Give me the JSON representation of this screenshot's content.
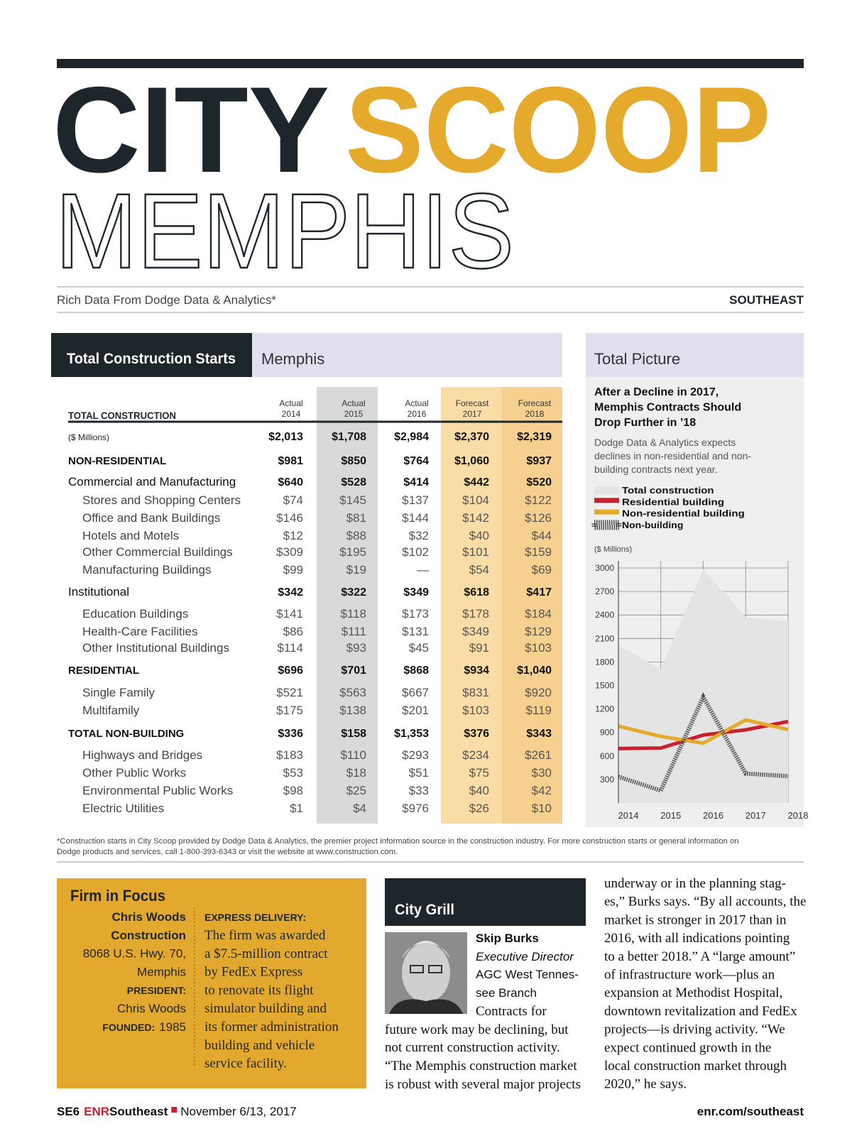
{
  "header": {
    "title_1": "CITY",
    "title_2": "SCOOP",
    "city": "MEMPHIS",
    "tagline": "Rich Data From Dodge Data & Analytics*",
    "region": "SOUTHEAST"
  },
  "table": {
    "title": "Total Construction Starts",
    "city": "Memphis",
    "heading": "TOTAL CONSTRUCTION",
    "columns": [
      {
        "status": "Actual",
        "year": "2014"
      },
      {
        "status": "Actual",
        "year": "2015"
      },
      {
        "status": "Actual",
        "year": "2016"
      },
      {
        "status": "Forecast",
        "year": "2017"
      },
      {
        "status": "Forecast",
        "year": "2018"
      }
    ],
    "rows": [
      {
        "label": "($ Millions)",
        "style": "total",
        "values": [
          "$2,013",
          "$1,708",
          "$2,984",
          "$2,370",
          "$2,319"
        ]
      },
      {
        "label": "NON-RESIDENTIAL",
        "style": "section",
        "values": [
          "$981",
          "$850",
          "$764",
          "$1,060",
          "$937"
        ]
      },
      {
        "label": "Commercial and Manufacturing",
        "style": "group",
        "values": [
          "$640",
          "$528",
          "$414",
          "$442",
          "$520"
        ]
      },
      {
        "label": "Stores and Shopping Centers",
        "style": "item",
        "values": [
          "$74",
          "$145",
          "$137",
          "$104",
          "$122"
        ]
      },
      {
        "label": "Office and Bank Buildings",
        "style": "item",
        "values": [
          "$146",
          "$81",
          "$144",
          "$142",
          "$126"
        ]
      },
      {
        "label": "Hotels and Motels",
        "style": "item",
        "values": [
          "$12",
          "$88",
          "$32",
          "$40",
          "$44"
        ]
      },
      {
        "label": "Other Commercial Buildings",
        "style": "item",
        "values": [
          "$309",
          "$195",
          "$102",
          "$101",
          "$159"
        ]
      },
      {
        "label": "Manufacturing Buildings",
        "style": "item",
        "values": [
          "$99",
          "$19",
          "—",
          "$54",
          "$69"
        ]
      },
      {
        "label": "Institutional",
        "style": "group",
        "values": [
          "$342",
          "$322",
          "$349",
          "$618",
          "$417"
        ]
      },
      {
        "label": "Education Buildings",
        "style": "item",
        "values": [
          "$141",
          "$118",
          "$173",
          "$178",
          "$184"
        ]
      },
      {
        "label": "Health-Care Facilities",
        "style": "item",
        "values": [
          "$86",
          "$111",
          "$131",
          "$349",
          "$129"
        ]
      },
      {
        "label": "Other Institutional Buildings",
        "style": "item",
        "values": [
          "$114",
          "$93",
          "$45",
          "$91",
          "$103"
        ]
      },
      {
        "label": "RESIDENTIAL",
        "style": "section",
        "values": [
          "$696",
          "$701",
          "$868",
          "$934",
          "$1,040"
        ]
      },
      {
        "label": "Single Family",
        "style": "item",
        "values": [
          "$521",
          "$563",
          "$667",
          "$831",
          "$920"
        ]
      },
      {
        "label": "Multifamily",
        "style": "item",
        "values": [
          "$175",
          "$138",
          "$201",
          "$103",
          "$119"
        ]
      },
      {
        "label": "TOTAL NON-BUILDING",
        "style": "section",
        "values": [
          "$336",
          "$158",
          "$1,353",
          "$376",
          "$343"
        ]
      },
      {
        "label": "Highways and Bridges",
        "style": "item",
        "values": [
          "$183",
          "$110",
          "$293",
          "$234",
          "$261"
        ]
      },
      {
        "label": "Other Public Works",
        "style": "item",
        "values": [
          "$53",
          "$18",
          "$51",
          "$75",
          "$30"
        ]
      },
      {
        "label": "Environmental Public Works",
        "style": "item",
        "values": [
          "$98",
          "$25",
          "$33",
          "$40",
          "$42"
        ]
      },
      {
        "label": "Electric Utilities",
        "style": "item",
        "values": [
          "$1",
          "$4",
          "$976",
          "$26",
          "$10"
        ]
      }
    ]
  },
  "panel": {
    "title": "Total Picture",
    "headline": [
      "After a Decline in 2017,",
      "Memphis Contracts Should",
      "Drop Further in ’18"
    ],
    "description": [
      "Dodge Data & Analytics expects",
      "declines in non-residential and non-",
      "building contracts next year."
    ],
    "units": "($ Millions)"
  },
  "chart_data": {
    "type": "line",
    "categories": [
      "2014",
      "2015",
      "2016",
      "2017",
      "2018"
    ],
    "series": [
      {
        "name": "Total construction",
        "color": "#e4e4e4",
        "style": "area",
        "values": [
          2013,
          1708,
          2984,
          2370,
          2319
        ]
      },
      {
        "name": "Residential building",
        "color": "#c8202f",
        "style": "line",
        "values": [
          696,
          701,
          868,
          934,
          1040
        ]
      },
      {
        "name": "Non-residential building",
        "color": "#e5a92c",
        "style": "line",
        "values": [
          981,
          850,
          764,
          1060,
          937
        ]
      },
      {
        "name": "Non-building",
        "color": "#4a4a4a",
        "style": "hatched",
        "values": [
          336,
          158,
          1353,
          376,
          343
        ]
      }
    ],
    "ylim": [
      0,
      3000
    ],
    "yticks": [
      300,
      600,
      900,
      1200,
      1500,
      1800,
      2100,
      2400,
      2700,
      3000
    ],
    "grid": true
  },
  "footnote": [
    "*Construction starts in City Scoop provided by Dodge Data & Analytics, the premier project information source in the construction industry. For more construction starts or general information on",
    "Dodge products and services, call 1-800-393-6343 or visit the website at www.construction.com."
  ],
  "firm": {
    "title": "Firm in Focus",
    "name_lines": [
      "Chris Woods",
      "Construction"
    ],
    "address_lines": [
      "8068 U.S. Hwy. 70,",
      "Memphis"
    ],
    "president_label": "PRESIDENT:",
    "president": "Chris Woods",
    "founded_label": "FOUNDED:",
    "founded": "1985",
    "story_heading": "EXPRESS DELIVERY:",
    "story_lines": [
      "The firm was awarded",
      "a $7.5-million contract",
      "by FedEx Express",
      "to renovate its flight",
      "simulator building and",
      "its former administration",
      "building and vehicle",
      "service facility."
    ]
  },
  "grill": {
    "title": "City Grill",
    "name": "Skip Burks",
    "role": "Executive Director",
    "org_lines": [
      "AGC West Tennes-",
      "see Branch"
    ],
    "body_lines": [
      "Contracts for",
      "future work may be declining, but",
      "not current construction activity.",
      "“The Memphis construction market",
      "is robust with several major projects",
      "underway or in the planning stag-",
      "es,” Burks says. “By all accounts, the",
      "market is stronger in 2017 than in",
      "2016, with all indications pointing",
      "to a better 2018.” A “large amount”",
      "of infrastructure work—plus an",
      "expansion at Methodist Hospital,",
      "downtown revitalization and FedEx",
      "projects—is driving activity. “We",
      "expect continued growth in the",
      "local construction market through",
      "2020,” he says."
    ]
  },
  "footer": {
    "page": "SE6",
    "brand": "ENR",
    "edition": "Southeast",
    "date": "November 6/13, 2017",
    "url": "enr.com/southeast"
  }
}
